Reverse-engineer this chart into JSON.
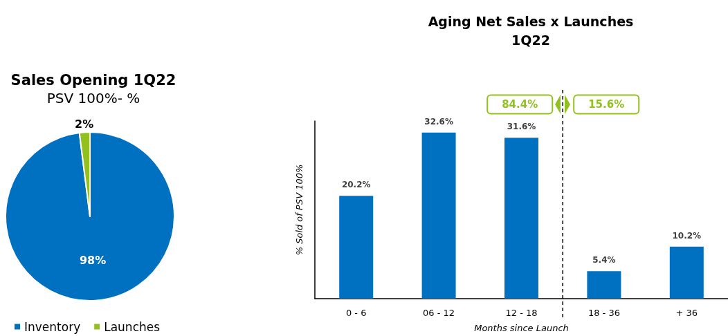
{
  "chart_data": [
    {
      "type": "pie",
      "title": "Sales Opening 1Q22",
      "subtitle": "PSV 100%- %",
      "categories": [
        "Inventory",
        "Launches"
      ],
      "values": [
        98,
        2
      ],
      "colors": [
        "#0070c0",
        "#92c01f"
      ],
      "value_labels": [
        "98%",
        "2%"
      ],
      "legend": "bottom"
    },
    {
      "type": "bar",
      "title": "Aging Net Sales x Launches",
      "subtitle": "1Q22",
      "xlabel": "Months since Launch",
      "ylabel": "% Sold of PSV 100%",
      "categories": [
        "0 - 6",
        "06 - 12",
        "12 - 18",
        "18 - 36",
        "+ 36"
      ],
      "values": [
        20.2,
        32.6,
        31.6,
        5.4,
        10.2
      ],
      "color": "#0070c0",
      "value_labels": [
        "20.2%",
        "32.6%",
        "31.6%",
        "5.4%",
        "10.2%"
      ],
      "tick_labels": "x",
      "grid": false,
      "annotations": [
        "84.4%",
        "15.6%"
      ]
    }
  ]
}
